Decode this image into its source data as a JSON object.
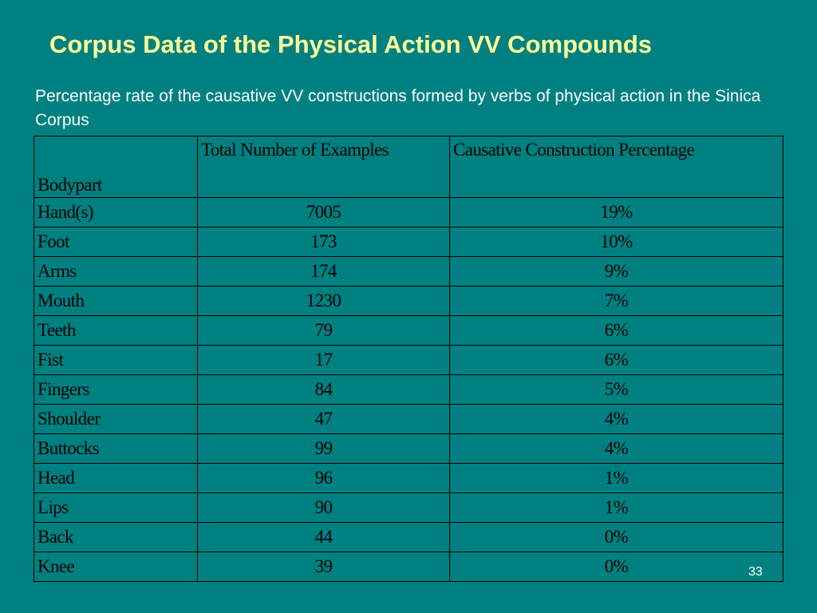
{
  "slide": {
    "title": "Corpus Data of the Physical Action VV Compounds",
    "subtitle": "Percentage rate of the causative VV constructions formed by verbs of physical action in the Sinica Corpus",
    "page_number": "33"
  },
  "table": {
    "headers": [
      "Bodypart",
      "Total Number of Examples",
      "Causative Construction Percentage"
    ],
    "rows": [
      [
        "Hand(s)",
        "7005",
        "19%"
      ],
      [
        "Foot",
        "173",
        "10%"
      ],
      [
        "Arms",
        "174",
        "9%"
      ],
      [
        "Mouth",
        "1230",
        "7%"
      ],
      [
        "Teeth",
        "79",
        "6%"
      ],
      [
        "Fist",
        "17",
        "6%"
      ],
      [
        "Fingers",
        "84",
        "5%"
      ],
      [
        "Shoulder",
        "47",
        "4%"
      ],
      [
        "Buttocks",
        "99",
        "4%"
      ],
      [
        "Head",
        "96",
        "1%"
      ],
      [
        "Lips",
        "90",
        "1%"
      ],
      [
        "Back",
        "44",
        "0%"
      ],
      [
        "Knee",
        "39",
        "0%"
      ]
    ]
  },
  "colors": {
    "background": "#008080",
    "title": "#ffff99",
    "text": "#ffffff"
  }
}
